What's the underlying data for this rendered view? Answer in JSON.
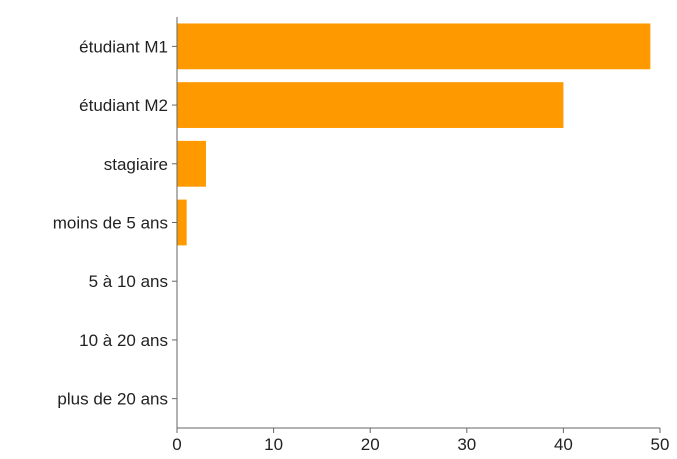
{
  "chart_data": {
    "type": "bar",
    "orientation": "horizontal",
    "categories": [
      "étudiant M1",
      "étudiant M2",
      "stagiaire",
      "moins de 5 ans",
      "5 à 10 ans",
      "10 à 20 ans",
      "plus de 20 ans"
    ],
    "values": [
      49,
      40,
      3,
      1,
      0,
      0,
      0
    ],
    "xlim": [
      0,
      50
    ],
    "xticks": [
      0,
      10,
      20,
      30,
      40,
      50
    ],
    "title": "",
    "xlabel": "",
    "ylabel": "",
    "grid": false,
    "bar_color": "#ff9900"
  }
}
